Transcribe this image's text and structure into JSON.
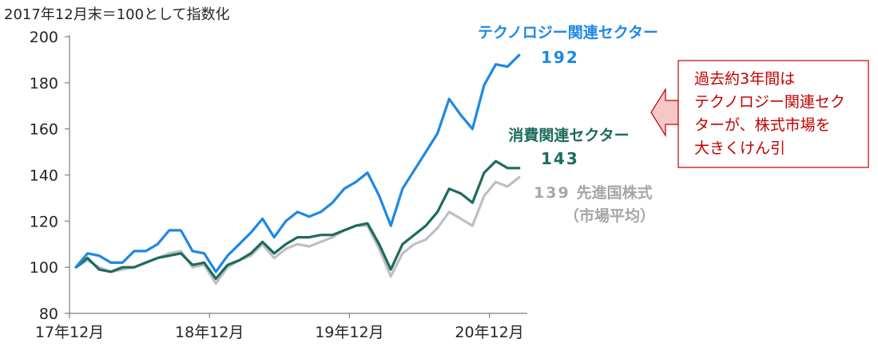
{
  "chart_data": {
    "type": "line",
    "note": "2017年12月末＝100として指数化",
    "x_ticks": [
      "17年12月",
      "18年12月",
      "19年12月",
      "20年12月"
    ],
    "ylim": [
      80,
      200
    ],
    "y_ticks": [
      80,
      100,
      120,
      140,
      160,
      180,
      200
    ],
    "grid": false,
    "months": 38,
    "series": [
      {
        "key": "tech",
        "name": "テクノロジー関連セクター",
        "end_label": "192",
        "color": "#1e88e5",
        "values": [
          100,
          106,
          105,
          102,
          102,
          107,
          107,
          110,
          116,
          116,
          107,
          106,
          98,
          105,
          110,
          115,
          121,
          113,
          120,
          124,
          122,
          124,
          128,
          134,
          137,
          141,
          131,
          118,
          134,
          142,
          150,
          158,
          173,
          166,
          160,
          179,
          188,
          187,
          192
        ]
      },
      {
        "key": "consumer",
        "name": "消費関連セクター",
        "end_label": "143",
        "color": "#1c6b5f",
        "values": [
          100,
          104,
          99,
          98,
          100,
          100,
          102,
          104,
          105,
          106,
          101,
          102,
          95,
          101,
          103,
          106,
          111,
          106,
          110,
          113,
          113,
          114,
          114,
          116,
          118,
          119,
          110,
          99,
          110,
          114,
          118,
          124,
          134,
          132,
          128,
          141,
          146,
          143,
          143
        ]
      },
      {
        "key": "developed",
        "name": "先進国株式",
        "name_sub": "（市場平均）",
        "end_label": "139",
        "color": "#bfbfbf",
        "values": [
          100,
          103,
          100,
          98,
          99,
          100,
          102,
          104,
          106,
          107,
          100,
          101,
          93,
          100,
          103,
          105,
          110,
          104,
          108,
          110,
          109,
          111,
          113,
          116,
          118,
          118,
          108,
          96,
          106,
          110,
          112,
          117,
          124,
          121,
          118,
          131,
          137,
          135,
          139
        ]
      }
    ]
  },
  "callout": {
    "lines": [
      "過去約3年間は",
      "テクノロジー関連セク",
      "ターが、株式市場を",
      "大きくけん引"
    ],
    "border_color": "#c00000",
    "text_color": "#c00000",
    "arrow_fill": "#f5c7c7"
  }
}
